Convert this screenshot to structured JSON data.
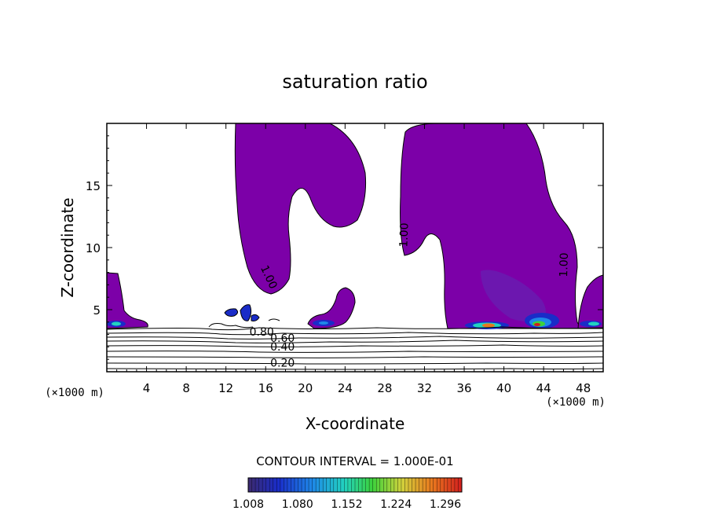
{
  "chart_data": {
    "type": "heatmap",
    "title": "saturation ratio",
    "xlabel": "X-coordinate",
    "ylabel": "Z-coordinate",
    "x_unit_left": "(×1000 m)",
    "x_unit_right": "(×1000 m)",
    "xlim": [
      0,
      50
    ],
    "ylim": [
      0,
      20
    ],
    "x_ticks": [
      "4",
      "8",
      "12",
      "16",
      "20",
      "24",
      "28",
      "32",
      "36",
      "40",
      "44",
      "48"
    ],
    "y_ticks": [
      "5",
      "10",
      "15"
    ],
    "contour_interval_text": "CONTOUR INTERVAL = 1.000E-01",
    "contour_labels": [
      {
        "text": "1.00",
        "x": 16.0,
        "y": 7.5,
        "rotate": 65
      },
      {
        "text": "1.00",
        "x": 30.3,
        "y": 11.0,
        "rotate": -88
      },
      {
        "text": "1.00",
        "x": 46.4,
        "y": 8.6,
        "rotate": -88
      },
      {
        "text": "0.80",
        "x": 15.6,
        "y": 2.9,
        "rotate": 0
      },
      {
        "text": "0.60",
        "x": 17.7,
        "y": 2.4,
        "rotate": 0
      },
      {
        "text": "0.40",
        "x": 17.7,
        "y": 1.7,
        "rotate": 0
      },
      {
        "text": "0.20",
        "x": 17.7,
        "y": 0.4,
        "rotate": 0
      }
    ],
    "colorbar": {
      "min": 1.008,
      "max": 1.32,
      "tick_labels": [
        "1.008",
        "1.080",
        "1.152",
        "1.224",
        "1.296"
      ],
      "colors": [
        "#3c2a6e",
        "#1a2cc8",
        "#1e88e8",
        "#22d2c0",
        "#3cd23c",
        "#d2d23c",
        "#e8781e",
        "#d21e1e"
      ]
    },
    "colors": {
      "saturated": "#7c00a8",
      "saturated_core": "#6a1bb0",
      "contour": "#000000"
    }
  }
}
